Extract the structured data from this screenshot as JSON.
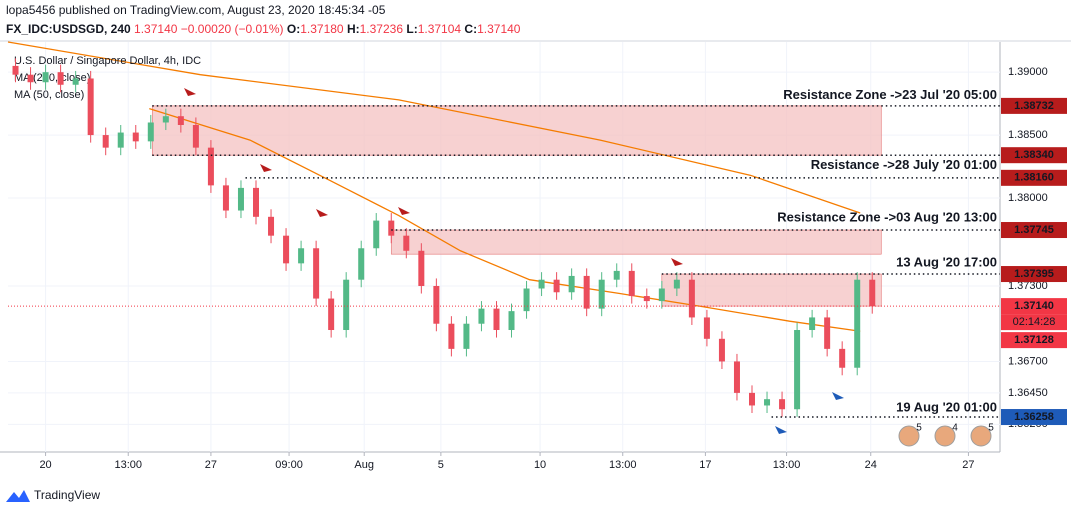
{
  "header": {
    "author_line": "lopa5456 published on TradingView.com, August 23, 2020 18:45:34 -05",
    "symbol": "FX_IDC:USDSGD, 240",
    "price": "1.37140",
    "change": "−0.00020 (−0.01%)",
    "ohlc": [
      {
        "key": "O:",
        "value": "1.37180"
      },
      {
        "key": "H:",
        "value": "1.37236"
      },
      {
        "key": "L:",
        "value": "1.37104"
      },
      {
        "key": "C:",
        "value": "1.37140"
      }
    ]
  },
  "chart_data": {
    "type": "candlestick",
    "title": "U.S. Dollar / Singapore Dollar, 4h, IDC",
    "up_color": "#53b987",
    "down_color": "#eb4d5c",
    "open": [
      1.3905,
      1.3898,
      1.3892,
      1.39,
      1.389,
      1.3895,
      1.385,
      1.384,
      1.3852,
      1.3845,
      1.386,
      1.3865,
      1.3858,
      1.384,
      1.381,
      1.379,
      1.3808,
      1.3785,
      1.377,
      1.3748,
      1.376,
      1.372,
      1.3695,
      1.3735,
      1.376,
      1.3782,
      1.377,
      1.3758,
      1.373,
      1.37,
      1.368,
      1.37,
      1.3712,
      1.3695,
      1.371,
      1.3728,
      1.3735,
      1.3725,
      1.3738,
      1.3712,
      1.3735,
      1.3742,
      1.3722,
      1.3718,
      1.3728,
      1.3735,
      1.3705,
      1.3688,
      1.367,
      1.3645,
      1.3635,
      1.364,
      1.3632,
      1.3695,
      1.3705,
      1.368,
      1.3665,
      1.3735
    ],
    "high": [
      1.3911,
      1.3904,
      1.3906,
      1.3906,
      1.3901,
      1.3901,
      1.3856,
      1.3858,
      1.3858,
      1.3866,
      1.3871,
      1.3871,
      1.3864,
      1.3846,
      1.3816,
      1.3814,
      1.3814,
      1.3791,
      1.3776,
      1.3766,
      1.3766,
      1.3726,
      1.3741,
      1.3766,
      1.3788,
      1.3788,
      1.3776,
      1.3764,
      1.3736,
      1.3706,
      1.3706,
      1.3718,
      1.3718,
      1.3716,
      1.3734,
      1.3741,
      1.3741,
      1.3744,
      1.3744,
      1.3741,
      1.3748,
      1.3748,
      1.3728,
      1.3734,
      1.3741,
      1.3741,
      1.3711,
      1.3694,
      1.3676,
      1.3651,
      1.3646,
      1.3646,
      1.3701,
      1.3711,
      1.3711,
      1.3686,
      1.3741,
      1.3741
    ],
    "low": [
      1.3892,
      1.3886,
      1.3886,
      1.3884,
      1.3884,
      1.3844,
      1.3834,
      1.3834,
      1.3839,
      1.3839,
      1.3854,
      1.3852,
      1.3834,
      1.3804,
      1.3784,
      1.3784,
      1.3779,
      1.3764,
      1.3742,
      1.3742,
      1.3714,
      1.3689,
      1.3689,
      1.3729,
      1.3754,
      1.3764,
      1.3752,
      1.3724,
      1.3694,
      1.3674,
      1.3674,
      1.3694,
      1.3689,
      1.3689,
      1.3704,
      1.3722,
      1.3719,
      1.3719,
      1.3706,
      1.3706,
      1.3729,
      1.3716,
      1.3712,
      1.3712,
      1.3722,
      1.3699,
      1.3682,
      1.3664,
      1.3639,
      1.3629,
      1.3629,
      1.3626,
      1.3626,
      1.3689,
      1.3674,
      1.3659,
      1.3659,
      1.3708
    ],
    "close": [
      1.3898,
      1.3892,
      1.39,
      1.389,
      1.3895,
      1.385,
      1.384,
      1.3852,
      1.3845,
      1.386,
      1.3865,
      1.3858,
      1.384,
      1.381,
      1.379,
      1.3808,
      1.3785,
      1.377,
      1.3748,
      1.376,
      1.372,
      1.3695,
      1.3735,
      1.376,
      1.3782,
      1.377,
      1.3758,
      1.373,
      1.37,
      1.368,
      1.37,
      1.3712,
      1.3695,
      1.371,
      1.3728,
      1.3735,
      1.3725,
      1.3738,
      1.3712,
      1.3735,
      1.3742,
      1.3722,
      1.3718,
      1.3728,
      1.3735,
      1.3705,
      1.3688,
      1.367,
      1.3645,
      1.3635,
      1.364,
      1.3632,
      1.3695,
      1.3705,
      1.368,
      1.3665,
      1.3735,
      1.3714
    ],
    "series": [
      {
        "name": "MA (200, close)",
        "color": "#f57c00",
        "x": [
          -0.5,
          12.3,
          25.5,
          38.9,
          48.9,
          56.2
        ],
        "values": [
          1.3924,
          1.3898,
          1.3878,
          1.3846,
          1.3818,
          1.3788
        ]
      },
      {
        "name": "MA (50, close)",
        "color": "#f57c00",
        "x": [
          8.9,
          15.6,
          20.9,
          25.5,
          29.6,
          34.2,
          40.2,
          45.5,
          51.5,
          56.2
        ],
        "values": [
          1.3871,
          1.3846,
          1.3814,
          1.3786,
          1.3758,
          1.3735,
          1.3724,
          1.3714,
          1.3702,
          1.3694
        ]
      }
    ],
    "zones": [
      {
        "x": [
          9.1,
          57.6
        ],
        "y": [
          1.3834,
          1.38732
        ]
      },
      {
        "x": [
          25.0,
          57.6
        ],
        "y": [
          1.37553,
          1.37745
        ]
      },
      {
        "x": [
          43.0,
          57.6
        ],
        "y": [
          1.3714,
          1.37395
        ]
      }
    ],
    "zone_color": "#f4c2c2",
    "levels": [
      {
        "value": 1.38732,
        "label": "1.38732",
        "from": 9.1,
        "color": "#b71c1c"
      },
      {
        "value": 1.3834,
        "label": "1.38340",
        "from": 9.1,
        "color": "#b71c1c"
      },
      {
        "value": 1.3816,
        "label": "1.38160",
        "from": 15.3,
        "color": "#b71c1c"
      },
      {
        "value": 1.37745,
        "label": "1.37745",
        "from": 25.0,
        "color": "#b71c1c"
      },
      {
        "value": 1.37395,
        "label": "1.37395",
        "from": 43.0,
        "color": "#b71c1c"
      },
      {
        "value": 1.36258,
        "label": "1.36258",
        "from": 50.3,
        "color": "#1e5bb8"
      }
    ],
    "last_price": {
      "value": 1.3714,
      "label": "1.37140",
      "countdown": "02:14:28",
      "color": "#f23645"
    },
    "ma_price": {
      "value": 1.37128,
      "label": "1.37128",
      "color": "#f23645"
    },
    "annotations": [
      {
        "text": "Resistance Zone ->23 Jul '20 05:00",
        "x": 65.3,
        "y": 1.38816,
        "color": "#c62828"
      },
      {
        "text": "Resistance ->28 July '20 01:00",
        "x": 65.3,
        "y": 1.38257,
        "color": "#c62828"
      },
      {
        "text": "Resistance Zone ->03 Aug '20 13:00",
        "x": 65.3,
        "y": 1.37841,
        "color": "#c62828"
      },
      {
        "text": "13 Aug '20 17:00",
        "x": 65.3,
        "y": 1.37481,
        "color": "#c62828"
      },
      {
        "text": "19 Aug '20 01:00",
        "x": 65.3,
        "y": 1.3633,
        "color": "#1a4d8f"
      }
    ],
    "events": [
      5,
      4,
      5
    ],
    "xlim": [
      -0.5,
      65.5
    ],
    "ylim": [
      1.3598,
      1.3924
    ],
    "xticks": [
      {
        "value": 2.0,
        "label": "20"
      },
      {
        "value": 7.5,
        "label": "13:00"
      },
      {
        "value": 13.0,
        "label": "27"
      },
      {
        "value": 18.2,
        "label": "09:00"
      },
      {
        "value": 23.2,
        "label": "Aug"
      },
      {
        "value": 28.3,
        "label": "5"
      },
      {
        "value": 34.9,
        "label": "10"
      },
      {
        "value": 40.4,
        "label": "13:00"
      },
      {
        "value": 45.9,
        "label": "17"
      },
      {
        "value": 51.3,
        "label": "13:00"
      },
      {
        "value": 56.9,
        "label": "24"
      },
      {
        "value": 63.4,
        "label": "27"
      }
    ],
    "yticks": [
      {
        "value": 1.39,
        "label": "1.39000"
      },
      {
        "value": 1.385,
        "label": "1.38500"
      },
      {
        "value": 1.38,
        "label": "1.38000"
      },
      {
        "value": 1.373,
        "label": "1.37300"
      },
      {
        "value": 1.367,
        "label": "1.36700"
      },
      {
        "value": 1.3645,
        "label": "1.36450"
      },
      {
        "value": 1.362,
        "label": "1.36200"
      }
    ],
    "grid": true
  },
  "footer": {
    "brand": "TradingView"
  }
}
